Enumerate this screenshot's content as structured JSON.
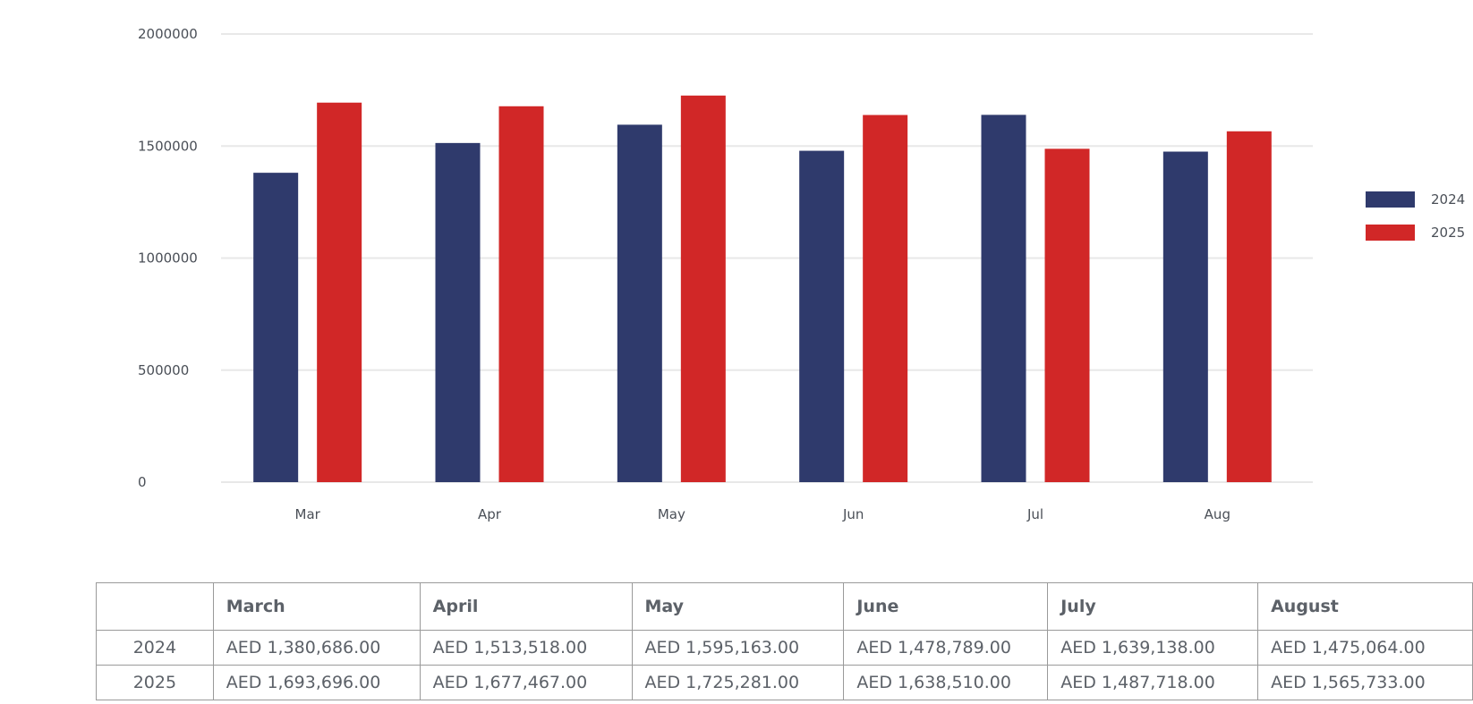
{
  "chart_data": {
    "type": "bar",
    "categories": [
      "Mar",
      "Apr",
      "May",
      "Jun",
      "Jul",
      "Aug"
    ],
    "series": [
      {
        "name": "2024",
        "color": "#2f3a6c",
        "values": [
          1380686,
          1513518,
          1595163,
          1478789,
          1639138,
          1475064
        ]
      },
      {
        "name": "2025",
        "color": "#d12727",
        "values": [
          1693696,
          1677467,
          1725281,
          1638510,
          1487718,
          1565733
        ]
      }
    ],
    "yticks": [
      "0",
      "500000",
      "1000000",
      "1500000",
      "2000000"
    ],
    "ylim": [
      0,
      2000000
    ],
    "grid": true,
    "legend_position": "right",
    "title": "",
    "xlabel": "",
    "ylabel": ""
  },
  "table": {
    "corner": "",
    "headers": [
      "March",
      "April",
      "May",
      "June",
      "July",
      "August"
    ],
    "rows": [
      {
        "label": "2024",
        "cells": [
          "AED 1,380,686.00",
          "AED 1,513,518.00",
          "AED 1,595,163.00",
          "AED 1,478,789.00",
          "AED 1,639,138.00",
          "AED 1,475,064.00"
        ]
      },
      {
        "label": "2025",
        "cells": [
          "AED 1,693,696.00",
          "AED 1,677,467.00",
          "AED 1,725,281.00",
          "AED 1,638,510.00",
          "AED 1,487,718.00",
          "AED 1,565,733.00"
        ]
      }
    ]
  }
}
